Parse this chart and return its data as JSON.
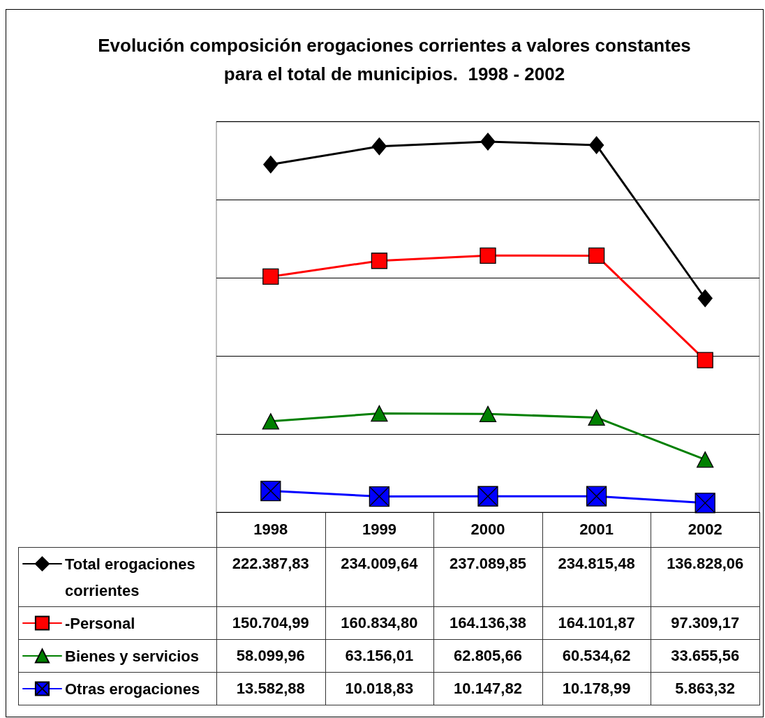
{
  "chart_data": {
    "type": "line",
    "title": "Evolución composición erogaciones corrientes a valores constantes para el total de municipios.  1998 - 2002",
    "categories": [
      "1998",
      "1999",
      "2000",
      "2001",
      "2002"
    ],
    "series": [
      {
        "name": "Total erogaciones corrientes",
        "color": "#000000",
        "marker": "diamond",
        "values": [
          222387.83,
          234009.64,
          237089.85,
          234815.48,
          136828.06
        ],
        "value_labels": [
          "222.387,83",
          "234.009,64",
          "237.089,85",
          "234.815,48",
          "136.828,06"
        ]
      },
      {
        "name": "-Personal",
        "color": "#ff0000",
        "marker": "square",
        "values": [
          150704.99,
          160834.8,
          164136.38,
          164101.87,
          97309.17
        ],
        "value_labels": [
          "150.704,99",
          "160.834,80",
          "164.136,38",
          "164.101,87",
          "97.309,17"
        ]
      },
      {
        "name": "Bienes y servicios",
        "color": "#008000",
        "marker": "triangle",
        "values": [
          58099.96,
          63156.01,
          62805.66,
          60534.62,
          33655.56
        ],
        "value_labels": [
          "58.099,96",
          "63.156,01",
          "62.805,66",
          "60.534,62",
          "33.655,56"
        ]
      },
      {
        "name": "Otras erogaciones",
        "color": "#0000ff",
        "marker": "cross",
        "values": [
          13582.88,
          10018.83,
          10147.82,
          10178.99,
          5863.32
        ],
        "value_labels": [
          "13.582,88",
          "10.018,83",
          "10.147,82",
          "10.178,99",
          "5.863,32"
        ]
      }
    ],
    "ylim": [
      0,
      250000
    ],
    "yticks": [
      0,
      50000,
      100000,
      150000,
      200000,
      250000
    ],
    "tick_labels": "x",
    "grid": "y",
    "legend": "bottom left",
    "line_style": "solid"
  }
}
